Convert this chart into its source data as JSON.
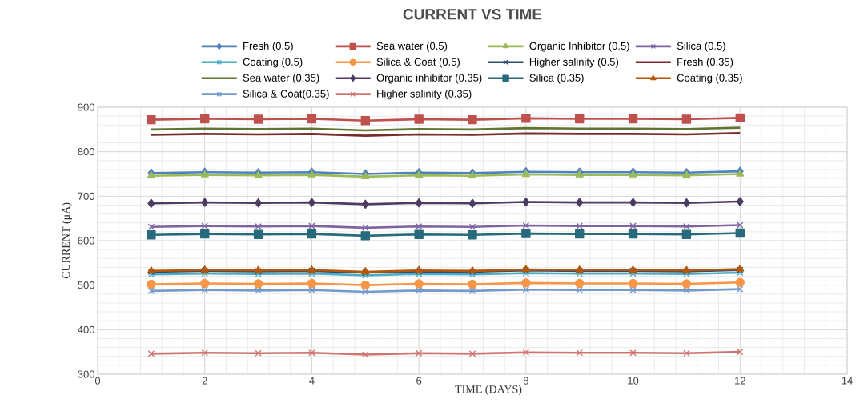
{
  "chart_data": {
    "type": "line",
    "title": "CURRENT VS TIME",
    "xlabel": "TIME (DAYS)",
    "ylabel": "CURRENT (μA)",
    "x": [
      1,
      2,
      3,
      4,
      5,
      6,
      7,
      8,
      9,
      10,
      11,
      12
    ],
    "xlim": [
      0,
      14
    ],
    "xticks": [
      0,
      2,
      4,
      6,
      8,
      10,
      12,
      14
    ],
    "ylim": [
      300,
      900
    ],
    "yticks": [
      300,
      400,
      500,
      600,
      700,
      800,
      900
    ],
    "grid": true,
    "legend": "top",
    "line_style": "solid",
    "series": [
      {
        "name": "Fresh (0.5)",
        "color": "#4f81bd",
        "marker": "diamond",
        "values": [
          752,
          754,
          753,
          754,
          750,
          753,
          752,
          755,
          754,
          754,
          753,
          756
        ]
      },
      {
        "name": "Sea water (0.5)",
        "color": "#c0504d",
        "marker": "square",
        "values": [
          872,
          874,
          873,
          874,
          870,
          873,
          872,
          875,
          874,
          874,
          873,
          876
        ]
      },
      {
        "name": "Organic Inhibitor (0.5)",
        "color": "#9bbb59",
        "marker": "triangle",
        "values": [
          746,
          748,
          747,
          748,
          744,
          747,
          746,
          749,
          748,
          748,
          747,
          750
        ]
      },
      {
        "name": "Silica (0.5)",
        "color": "#8064a2",
        "marker": "cross",
        "values": [
          631,
          633,
          632,
          633,
          629,
          632,
          631,
          634,
          633,
          633,
          632,
          635
        ]
      },
      {
        "name": "Coating (0.5)",
        "color": "#4bacc6",
        "marker": "cross",
        "values": [
          524,
          526,
          525,
          526,
          522,
          525,
          524,
          527,
          526,
          526,
          525,
          528
        ]
      },
      {
        "name": "Silica & Coat (0.5)",
        "color": "#f79646",
        "marker": "circle",
        "values": [
          502,
          504,
          503,
          504,
          500,
          503,
          502,
          505,
          504,
          504,
          503,
          506
        ]
      },
      {
        "name": "Higher salinity (0.5)",
        "color": "#2c4d75",
        "marker": "cross",
        "values": [
          530,
          532,
          531,
          532,
          528,
          531,
          530,
          533,
          532,
          532,
          531,
          534
        ]
      },
      {
        "name": "Fresh (0.35)",
        "color": "#772c2a",
        "marker": "none",
        "values": [
          838,
          840,
          839,
          840,
          836,
          839,
          838,
          841,
          840,
          840,
          839,
          842
        ]
      },
      {
        "name": "Sea water (0.35)",
        "color": "#5f7530",
        "marker": "none",
        "values": [
          850,
          852,
          851,
          852,
          848,
          851,
          850,
          853,
          852,
          852,
          851,
          854
        ]
      },
      {
        "name": "Organic inhibitor (0.35)",
        "color": "#4d3b62",
        "marker": "diamond",
        "values": [
          684,
          686,
          685,
          686,
          682,
          685,
          684,
          687,
          686,
          686,
          685,
          688
        ]
      },
      {
        "name": "Silica (0.35)",
        "color": "#276a7c",
        "marker": "square",
        "values": [
          613,
          615,
          614,
          615,
          611,
          614,
          613,
          616,
          615,
          615,
          614,
          617
        ]
      },
      {
        "name": "Coating (0.35)",
        "color": "#b65708",
        "marker": "triangle",
        "values": [
          532,
          534,
          533,
          534,
          530,
          533,
          532,
          535,
          534,
          534,
          533,
          536
        ]
      },
      {
        "name": "Silica & Coat(0.35)",
        "color": "#729aca",
        "marker": "cross",
        "values": [
          487,
          489,
          488,
          489,
          485,
          488,
          487,
          490,
          489,
          489,
          488,
          491
        ]
      },
      {
        "name": "Higher salinity (0.35)",
        "color": "#d07470",
        "marker": "cross",
        "values": [
          346,
          348,
          347,
          348,
          344,
          347,
          346,
          349,
          348,
          348,
          347,
          350
        ]
      }
    ]
  }
}
